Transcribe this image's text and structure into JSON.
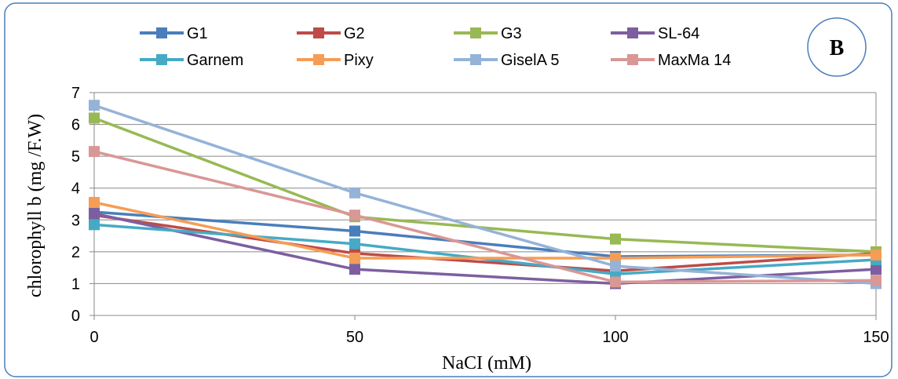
{
  "chart_data": {
    "type": "line",
    "panel_label": "B",
    "xlabel": "NaCI (mM)",
    "ylabel": "chlorophyll b  (mg /F.W)",
    "x": [
      0,
      50,
      100,
      150
    ],
    "xlim": [
      0,
      150
    ],
    "ylim": [
      0,
      7
    ],
    "xticks": [
      "0",
      "50",
      "100",
      "150"
    ],
    "yticks": [
      "0",
      "1",
      "2",
      "3",
      "4",
      "5",
      "6",
      "7"
    ],
    "grid": true,
    "legend_position": "top",
    "series": [
      {
        "name": "G1",
        "color": "#4a7ebb",
        "values": [
          3.25,
          2.65,
          1.85,
          1.9
        ]
      },
      {
        "name": "G2",
        "color": "#be4b48",
        "values": [
          3.15,
          1.95,
          1.4,
          1.95
        ]
      },
      {
        "name": "G3",
        "color": "#98b954",
        "values": [
          6.2,
          3.1,
          2.4,
          2.0
        ]
      },
      {
        "name": "SL-64",
        "color": "#7d5fa0",
        "values": [
          3.2,
          1.45,
          1.0,
          1.45
        ]
      },
      {
        "name": "Garnem",
        "color": "#46aac5",
        "values": [
          2.85,
          2.25,
          1.3,
          1.75
        ]
      },
      {
        "name": "Pixy",
        "color": "#f59d56",
        "values": [
          3.55,
          1.8,
          1.8,
          1.9
        ]
      },
      {
        "name": "GiselA 5",
        "color": "#95b3d7",
        "values": [
          6.6,
          3.85,
          1.55,
          1.0
        ]
      },
      {
        "name": "MaxMa 14",
        "color": "#d99795",
        "values": [
          5.15,
          3.15,
          1.05,
          1.1
        ]
      }
    ]
  }
}
